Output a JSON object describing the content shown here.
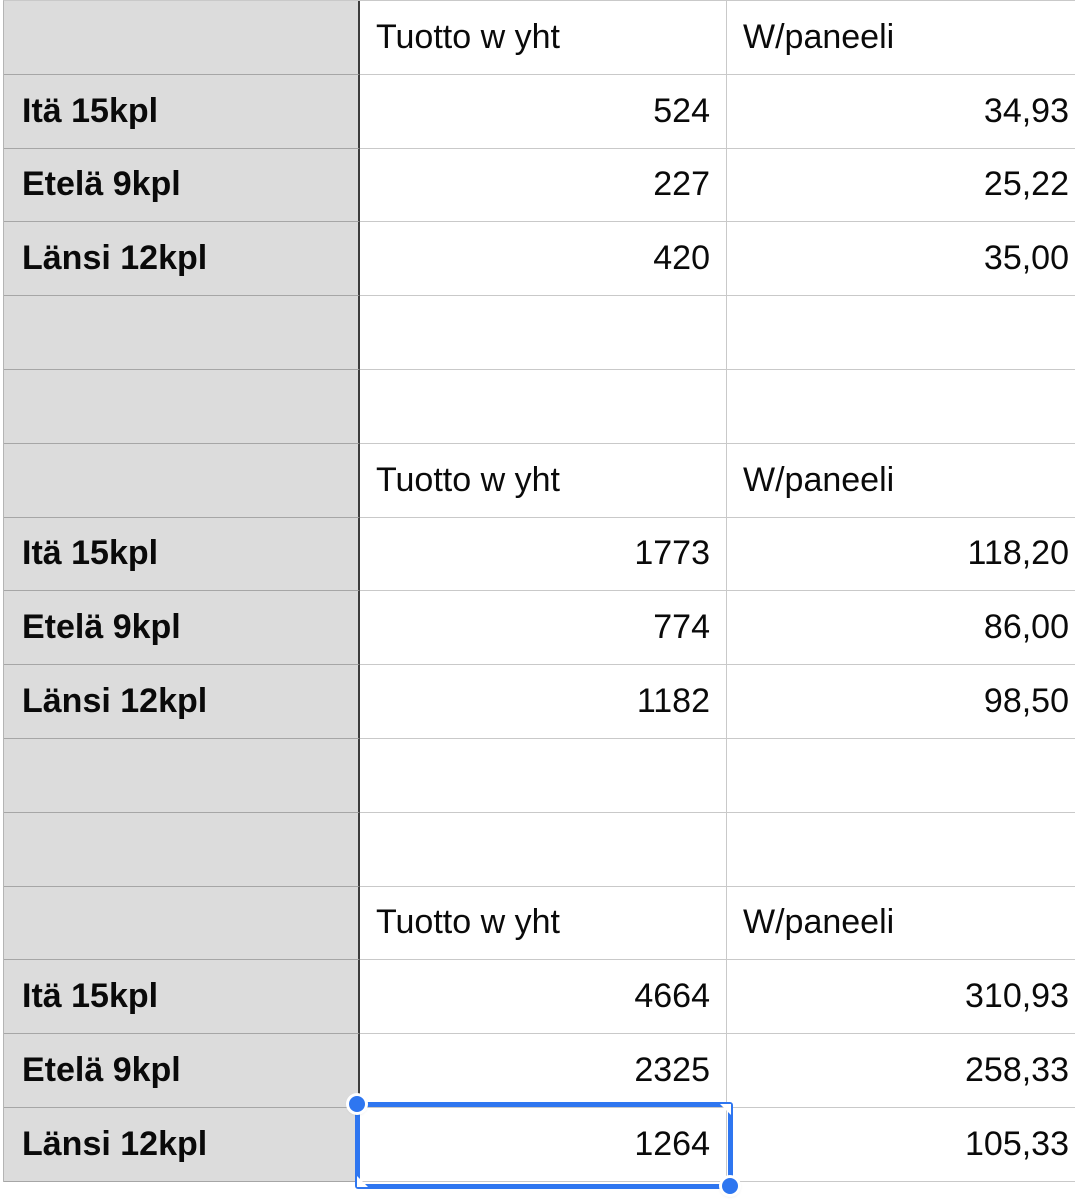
{
  "app": {
    "type": "spreadsheet-table"
  },
  "colors": {
    "selection_blue": "#2e76f0",
    "label_column_bg": "#dcdcdc",
    "dark_divider": "#3d3d3d",
    "grid_line": "#c9c9c9"
  },
  "sections": [
    {
      "headers": {
        "tuotto": "Tuotto w yht",
        "paneeli": "W/paneeli"
      },
      "rows": [
        {
          "label": "Itä 15kpl",
          "tuotto": "524",
          "paneeli": "34,93"
        },
        {
          "label": "Etelä 9kpl",
          "tuotto": "227",
          "paneeli": "25,22"
        },
        {
          "label": "Länsi 12kpl",
          "tuotto": "420",
          "paneeli": "35,00"
        }
      ]
    },
    {
      "headers": {
        "tuotto": "Tuotto w yht",
        "paneeli": "W/paneeli"
      },
      "rows": [
        {
          "label": "Itä 15kpl",
          "tuotto": "1773",
          "paneeli": "118,20"
        },
        {
          "label": "Etelä 9kpl",
          "tuotto": "774",
          "paneeli": "86,00"
        },
        {
          "label": "Länsi 12kpl",
          "tuotto": "1182",
          "paneeli": "98,50"
        }
      ]
    },
    {
      "headers": {
        "tuotto": "Tuotto w yht",
        "paneeli": "W/paneeli"
      },
      "rows": [
        {
          "label": "Itä 15kpl",
          "tuotto": "4664",
          "paneeli": "310,93"
        },
        {
          "label": "Etelä 9kpl",
          "tuotto": "2325",
          "paneeli": "258,33"
        },
        {
          "label": "Länsi 12kpl",
          "tuotto": "1264",
          "paneeli": "105,33"
        }
      ]
    }
  ],
  "selection": {
    "row_label": "Länsi 12kpl",
    "column": "Tuotto w yht",
    "selected_cell_value": "1264",
    "color": "#2e76f0"
  }
}
